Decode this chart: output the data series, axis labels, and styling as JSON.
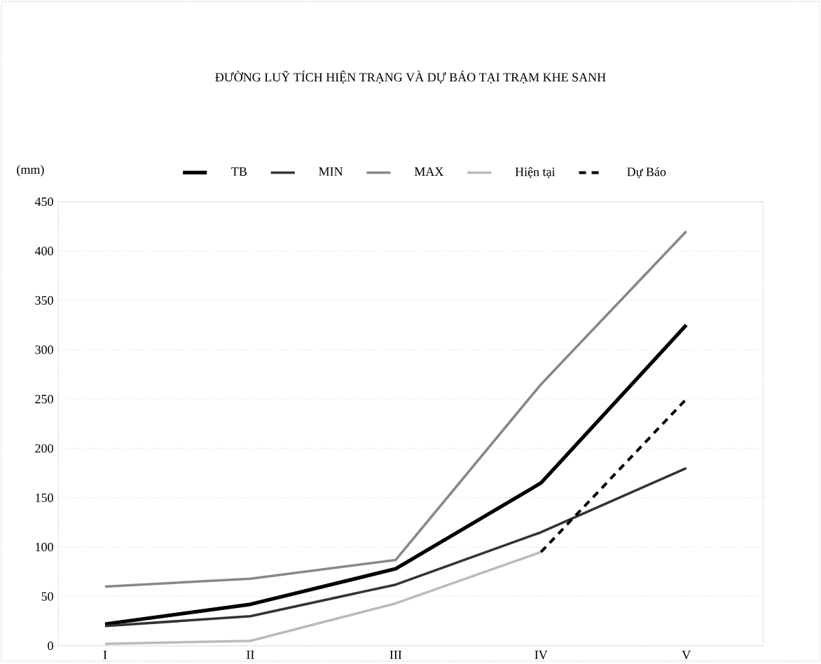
{
  "chart_data": {
    "type": "line",
    "title": "ĐƯỜNG LUỸ TÍCH HIỆN TRẠNG VÀ DỰ BÁO TẠI TRẠM KHE SANH",
    "ylabel": "(mm)",
    "categories": [
      "I",
      "II",
      "III",
      "IV",
      "V"
    ],
    "series": [
      {
        "name": "TB",
        "color": "#000000",
        "values": [
          22,
          42,
          78,
          165,
          325
        ]
      },
      {
        "name": "MIN",
        "color": "#333333",
        "values": [
          20,
          30,
          62,
          115,
          180
        ]
      },
      {
        "name": "MAX",
        "color": "#888888",
        "values": [
          60,
          68,
          87,
          265,
          420
        ]
      },
      {
        "name": "Hiện tại",
        "color": "#bbbbbb",
        "values": [
          2,
          5,
          43,
          95,
          null
        ]
      },
      {
        "name": "Dự Báo",
        "color": "#000000",
        "line_style": "dashed",
        "values": [
          null,
          null,
          null,
          95,
          250
        ]
      }
    ],
    "ylim": [
      0,
      450
    ],
    "yticks": [
      0,
      50,
      100,
      150,
      200,
      250,
      300,
      350,
      400,
      450
    ],
    "grid": "y",
    "legend": "top",
    "marker": "none",
    "line_style": "solid"
  }
}
